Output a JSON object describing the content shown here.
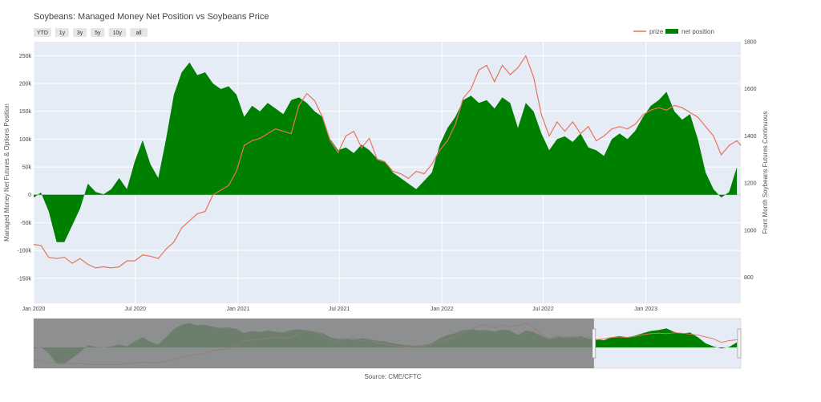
{
  "chart_data": {
    "type": "area",
    "title": "Soybeans: Managed Money Net Position vs Soybeans Price",
    "source": "Source: CME/CFTC",
    "range_buttons": [
      "YTD",
      "1y",
      "3y",
      "5y",
      "10y",
      "all"
    ],
    "legend": {
      "position": "top-right",
      "entries": [
        "prize",
        "net position"
      ]
    },
    "grid": true,
    "x_ticks": [
      "Jan 2020",
      "Jul 2020",
      "Jan 2021",
      "Jul 2021",
      "Jan 2022",
      "Jul 2022",
      "Jan 2023"
    ],
    "x_range": [
      "2020-01-01",
      "2023-06-20"
    ],
    "y_left": {
      "label": "Managed Money Net Futures & Options Position",
      "range": [
        -195000,
        275000
      ],
      "ticks": [
        "-150k",
        "-100k",
        "-50k",
        "0",
        "50k",
        "100k",
        "150k",
        "200k",
        "250k"
      ],
      "tick_values": [
        -150000,
        -100000,
        -50000,
        0,
        50000,
        100000,
        150000,
        200000,
        250000
      ]
    },
    "y_right": {
      "label": "Front Month Soybeans Futures Continuous",
      "range": [
        690,
        1800
      ],
      "ticks": [
        "800",
        "1000",
        "1200",
        "1400",
        "1600",
        "1800"
      ],
      "tick_values": [
        800,
        1000,
        1200,
        1400,
        1600,
        1800
      ]
    },
    "colors": {
      "price": "#e8735c",
      "net_position": "#008000",
      "plot_bg": "#e5ecf6",
      "selector_shade": "#7f7f7f"
    },
    "series": [
      {
        "name": "net position",
        "axis": "left",
        "points": [
          [
            "2020-01-01",
            -5000
          ],
          [
            "2020-01-14",
            4000
          ],
          [
            "2020-01-28",
            -30000
          ],
          [
            "2020-02-11",
            -85000
          ],
          [
            "2020-02-25",
            -85000
          ],
          [
            "2020-03-10",
            -55000
          ],
          [
            "2020-03-24",
            -25000
          ],
          [
            "2020-04-07",
            20000
          ],
          [
            "2020-04-21",
            5000
          ],
          [
            "2020-05-05",
            1000
          ],
          [
            "2020-05-19",
            10000
          ],
          [
            "2020-06-02",
            30000
          ],
          [
            "2020-06-16",
            10000
          ],
          [
            "2020-06-30",
            60000
          ],
          [
            "2020-07-14",
            98000
          ],
          [
            "2020-07-28",
            55000
          ],
          [
            "2020-08-11",
            30000
          ],
          [
            "2020-08-25",
            100000
          ],
          [
            "2020-09-08",
            180000
          ],
          [
            "2020-09-22",
            220000
          ],
          [
            "2020-10-06",
            238000
          ],
          [
            "2020-10-20",
            215000
          ],
          [
            "2020-11-03",
            220000
          ],
          [
            "2020-11-17",
            200000
          ],
          [
            "2020-12-01",
            190000
          ],
          [
            "2020-12-15",
            195000
          ],
          [
            "2020-12-29",
            180000
          ],
          [
            "2021-01-12",
            140000
          ],
          [
            "2021-01-26",
            160000
          ],
          [
            "2021-02-09",
            150000
          ],
          [
            "2021-02-23",
            165000
          ],
          [
            "2021-03-09",
            155000
          ],
          [
            "2021-03-23",
            145000
          ],
          [
            "2021-04-06",
            170000
          ],
          [
            "2021-04-20",
            175000
          ],
          [
            "2021-05-04",
            165000
          ],
          [
            "2021-05-18",
            150000
          ],
          [
            "2021-06-01",
            140000
          ],
          [
            "2021-06-15",
            100000
          ],
          [
            "2021-06-29",
            80000
          ],
          [
            "2021-07-13",
            85000
          ],
          [
            "2021-07-27",
            75000
          ],
          [
            "2021-08-10",
            90000
          ],
          [
            "2021-08-24",
            80000
          ],
          [
            "2021-09-07",
            65000
          ],
          [
            "2021-09-21",
            60000
          ],
          [
            "2021-10-05",
            40000
          ],
          [
            "2021-10-19",
            30000
          ],
          [
            "2021-11-02",
            20000
          ],
          [
            "2021-11-16",
            10000
          ],
          [
            "2021-11-30",
            25000
          ],
          [
            "2021-12-14",
            40000
          ],
          [
            "2021-12-28",
            90000
          ],
          [
            "2022-01-11",
            120000
          ],
          [
            "2022-01-25",
            140000
          ],
          [
            "2022-02-08",
            170000
          ],
          [
            "2022-02-22",
            178000
          ],
          [
            "2022-03-08",
            165000
          ],
          [
            "2022-03-22",
            170000
          ],
          [
            "2022-04-05",
            155000
          ],
          [
            "2022-04-19",
            175000
          ],
          [
            "2022-05-03",
            165000
          ],
          [
            "2022-05-17",
            120000
          ],
          [
            "2022-05-31",
            165000
          ],
          [
            "2022-06-14",
            150000
          ],
          [
            "2022-06-28",
            110000
          ],
          [
            "2022-07-12",
            80000
          ],
          [
            "2022-07-26",
            100000
          ],
          [
            "2022-08-09",
            105000
          ],
          [
            "2022-08-23",
            95000
          ],
          [
            "2022-09-06",
            110000
          ],
          [
            "2022-09-20",
            85000
          ],
          [
            "2022-10-04",
            80000
          ],
          [
            "2022-10-18",
            70000
          ],
          [
            "2022-11-01",
            100000
          ],
          [
            "2022-11-15",
            110000
          ],
          [
            "2022-11-29",
            100000
          ],
          [
            "2022-12-13",
            115000
          ],
          [
            "2022-12-27",
            140000
          ],
          [
            "2023-01-10",
            160000
          ],
          [
            "2023-01-24",
            170000
          ],
          [
            "2023-02-07",
            185000
          ],
          [
            "2023-02-21",
            150000
          ],
          [
            "2023-03-07",
            135000
          ],
          [
            "2023-03-21",
            145000
          ],
          [
            "2023-04-04",
            100000
          ],
          [
            "2023-04-18",
            40000
          ],
          [
            "2023-05-02",
            10000
          ],
          [
            "2023-05-16",
            -5000
          ],
          [
            "2023-05-30",
            5000
          ],
          [
            "2023-06-13",
            50000
          ]
        ]
      },
      {
        "name": "prize",
        "axis": "right",
        "points": [
          [
            "2020-01-01",
            940
          ],
          [
            "2020-01-14",
            935
          ],
          [
            "2020-01-28",
            885
          ],
          [
            "2020-02-11",
            880
          ],
          [
            "2020-02-25",
            885
          ],
          [
            "2020-03-10",
            860
          ],
          [
            "2020-03-24",
            880
          ],
          [
            "2020-04-07",
            855
          ],
          [
            "2020-04-21",
            840
          ],
          [
            "2020-05-05",
            845
          ],
          [
            "2020-05-19",
            840
          ],
          [
            "2020-06-02",
            845
          ],
          [
            "2020-06-16",
            870
          ],
          [
            "2020-06-30",
            870
          ],
          [
            "2020-07-14",
            895
          ],
          [
            "2020-07-28",
            890
          ],
          [
            "2020-08-11",
            880
          ],
          [
            "2020-08-25",
            920
          ],
          [
            "2020-09-08",
            950
          ],
          [
            "2020-09-22",
            1010
          ],
          [
            "2020-10-06",
            1040
          ],
          [
            "2020-10-20",
            1070
          ],
          [
            "2020-11-03",
            1080
          ],
          [
            "2020-11-17",
            1150
          ],
          [
            "2020-12-01",
            1170
          ],
          [
            "2020-12-15",
            1190
          ],
          [
            "2020-12-29",
            1250
          ],
          [
            "2021-01-12",
            1360
          ],
          [
            "2021-01-26",
            1380
          ],
          [
            "2021-02-09",
            1390
          ],
          [
            "2021-02-23",
            1410
          ],
          [
            "2021-03-09",
            1430
          ],
          [
            "2021-03-23",
            1420
          ],
          [
            "2021-04-06",
            1410
          ],
          [
            "2021-04-20",
            1530
          ],
          [
            "2021-05-04",
            1580
          ],
          [
            "2021-05-18",
            1550
          ],
          [
            "2021-06-01",
            1480
          ],
          [
            "2021-06-15",
            1380
          ],
          [
            "2021-06-29",
            1330
          ],
          [
            "2021-07-13",
            1400
          ],
          [
            "2021-07-27",
            1420
          ],
          [
            "2021-08-10",
            1350
          ],
          [
            "2021-08-24",
            1390
          ],
          [
            "2021-09-07",
            1300
          ],
          [
            "2021-09-21",
            1290
          ],
          [
            "2021-10-05",
            1250
          ],
          [
            "2021-10-19",
            1240
          ],
          [
            "2021-11-02",
            1220
          ],
          [
            "2021-11-16",
            1250
          ],
          [
            "2021-11-30",
            1240
          ],
          [
            "2021-12-14",
            1280
          ],
          [
            "2021-12-28",
            1340
          ],
          [
            "2022-01-11",
            1380
          ],
          [
            "2022-01-25",
            1450
          ],
          [
            "2022-02-08",
            1560
          ],
          [
            "2022-02-22",
            1600
          ],
          [
            "2022-03-08",
            1680
          ],
          [
            "2022-03-22",
            1700
          ],
          [
            "2022-04-05",
            1630
          ],
          [
            "2022-04-19",
            1700
          ],
          [
            "2022-05-03",
            1660
          ],
          [
            "2022-05-17",
            1690
          ],
          [
            "2022-05-31",
            1740
          ],
          [
            "2022-06-14",
            1650
          ],
          [
            "2022-06-28",
            1490
          ],
          [
            "2022-07-12",
            1400
          ],
          [
            "2022-07-26",
            1460
          ],
          [
            "2022-08-09",
            1420
          ],
          [
            "2022-08-23",
            1460
          ],
          [
            "2022-09-06",
            1410
          ],
          [
            "2022-09-20",
            1440
          ],
          [
            "2022-10-04",
            1380
          ],
          [
            "2022-10-18",
            1400
          ],
          [
            "2022-11-01",
            1430
          ],
          [
            "2022-11-15",
            1440
          ],
          [
            "2022-11-29",
            1430
          ],
          [
            "2022-12-13",
            1450
          ],
          [
            "2022-12-27",
            1490
          ],
          [
            "2023-01-10",
            1510
          ],
          [
            "2023-01-24",
            1520
          ],
          [
            "2023-02-07",
            1510
          ],
          [
            "2023-02-21",
            1530
          ],
          [
            "2023-03-07",
            1520
          ],
          [
            "2023-03-21",
            1500
          ],
          [
            "2023-04-04",
            1480
          ],
          [
            "2023-04-18",
            1440
          ],
          [
            "2023-05-02",
            1400
          ],
          [
            "2023-05-16",
            1320
          ],
          [
            "2023-05-30",
            1360
          ],
          [
            "2023-06-13",
            1380
          ],
          [
            "2023-06-20",
            1360
          ]
        ]
      }
    ],
    "range_selector_start": "2022-09-30"
  }
}
